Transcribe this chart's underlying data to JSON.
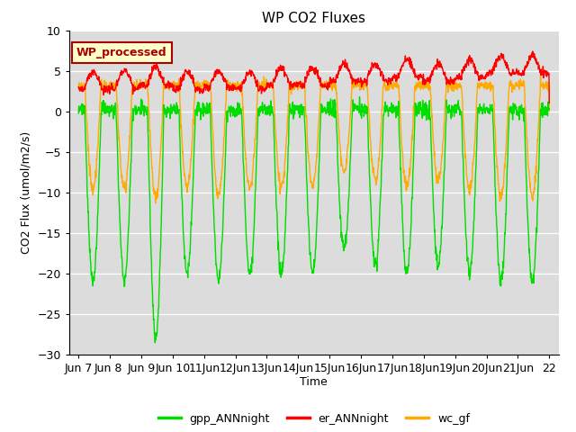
{
  "title": "WP CO2 Fluxes",
  "xlabel": "Time",
  "ylabel": "CO2 Flux (umol/m2/s)",
  "ylim": [
    -30,
    10
  ],
  "background_color": "#dcdcdc",
  "figure_bg": "#ffffff",
  "annotation_text": "WP_processed",
  "annotation_bg": "#ffffcc",
  "annotation_edge": "#aa0000",
  "annotation_text_color": "#aa0000",
  "x_tick_labels": [
    "Jun 7",
    "Jun 8 ",
    "Jun 9",
    "Jun 10",
    "11Jun",
    "12Jun",
    "13Jun",
    "14Jun",
    "15Jun",
    "16Jun",
    "17Jun",
    "18Jun",
    "19Jun",
    "20Jun",
    "21Jun",
    "22"
  ],
  "legend_labels": [
    "gpp_ANNnight",
    "er_ANNnight",
    "wc_gf"
  ],
  "legend_colors": [
    "#00dd00",
    "#ff0000",
    "#ffaa00"
  ],
  "line_width": 1.0,
  "n_days": 15,
  "pts_per_day": 96
}
